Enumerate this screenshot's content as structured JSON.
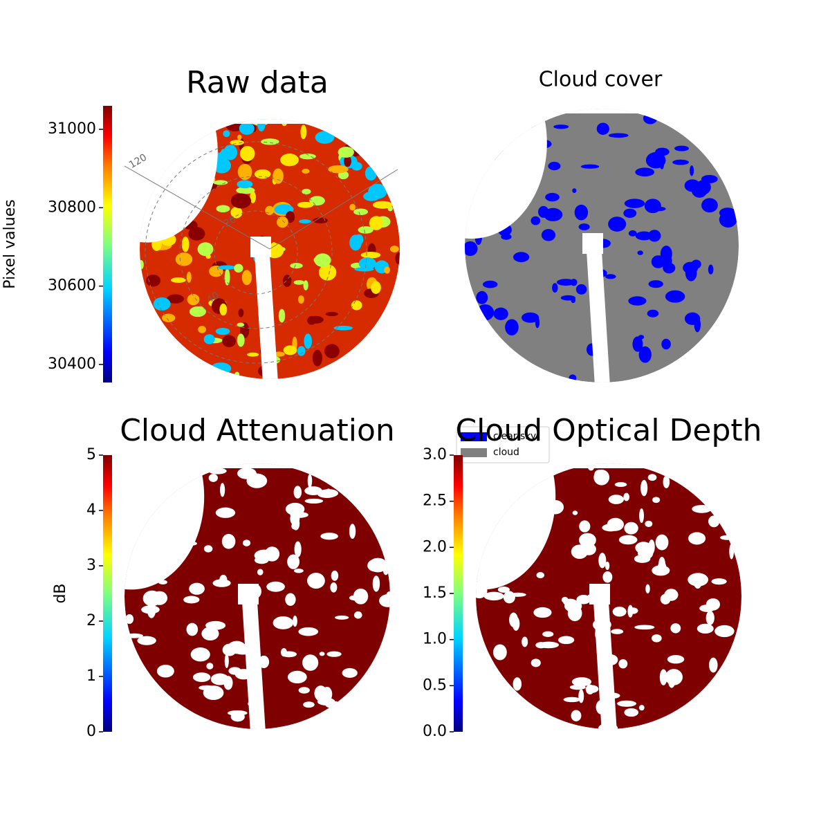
{
  "chart_data": [
    {
      "type": "image",
      "title": "Raw data",
      "colorbar_label": "Pixel values",
      "colormap": "jet",
      "ylim": [
        30354,
        31060
      ],
      "yticks": [
        30400,
        30600,
        30800,
        31000
      ],
      "annotations": [
        "120",
        "20",
        "40"
      ]
    },
    {
      "type": "categorical",
      "title": "Cloud cover",
      "legend_items": [
        {
          "name": "clear sky",
          "color": "#0000ff"
        },
        {
          "name": "cloud",
          "color": "#808080"
        }
      ]
    },
    {
      "type": "image",
      "title": "Cloud Attenuation",
      "colorbar_label": "dB",
      "colormap": "jet",
      "ylim": [
        0,
        5
      ],
      "yticks": [
        0,
        1,
        2,
        3,
        4,
        5
      ]
    },
    {
      "type": "image",
      "title": "Cloud Optical Depth",
      "colormap": "jet",
      "ylim": [
        0,
        3
      ],
      "yticks": [
        {
          "value": 0,
          "label": "0.0"
        },
        0.5,
        {
          "value": 1,
          "label": "1.0"
        },
        1.5,
        {
          "value": 2,
          "label": "2.0"
        },
        2.5,
        {
          "value": 3,
          "label": "3.0"
        }
      ]
    }
  ]
}
